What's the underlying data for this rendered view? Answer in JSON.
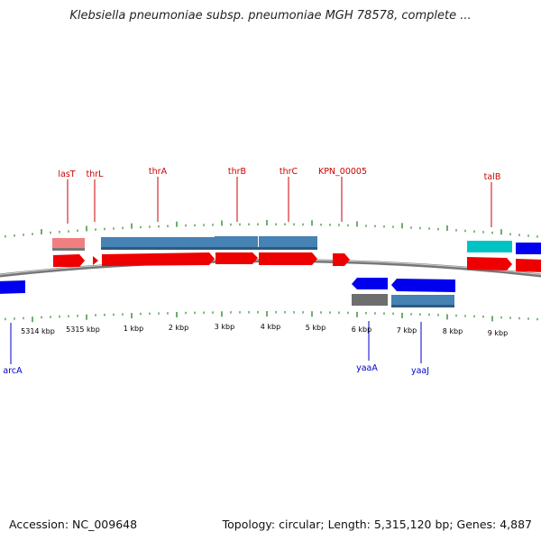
{
  "title": "Klebsiella pneumoniae subsp. pneumoniae MGH 78578, complete ...",
  "footer": {
    "accession": "Accession: NC_009648",
    "topology": "Topology: circular; Length: 5,315,120 bp; Genes: 4,887"
  },
  "colors": {
    "label_red": "#cc0000",
    "label_blue": "#0000cc",
    "tick_green": "#2d8a2d",
    "backbone": "#888888"
  },
  "gene_labels_top": [
    {
      "name": "lasT"
    },
    {
      "name": "thrL"
    },
    {
      "name": "thrA"
    },
    {
      "name": "thrB"
    },
    {
      "name": "thrC"
    },
    {
      "name": "KPN_00005"
    },
    {
      "name": "talB"
    }
  ],
  "gene_labels_bottom": [
    {
      "name": "arcA"
    },
    {
      "name": "yaaA"
    },
    {
      "name": "yaaJ"
    }
  ],
  "ruler_labels": [
    {
      "text": "5314 kbp"
    },
    {
      "text": "5315 kbp"
    },
    {
      "text": "1 kbp"
    },
    {
      "text": "2 kbp"
    },
    {
      "text": "3 kbp"
    },
    {
      "text": "4 kbp"
    },
    {
      "text": "5 kbp"
    },
    {
      "text": "6 kbp"
    },
    {
      "text": "7 kbp"
    },
    {
      "text": "8 kbp"
    },
    {
      "text": "9 kbp"
    }
  ]
}
